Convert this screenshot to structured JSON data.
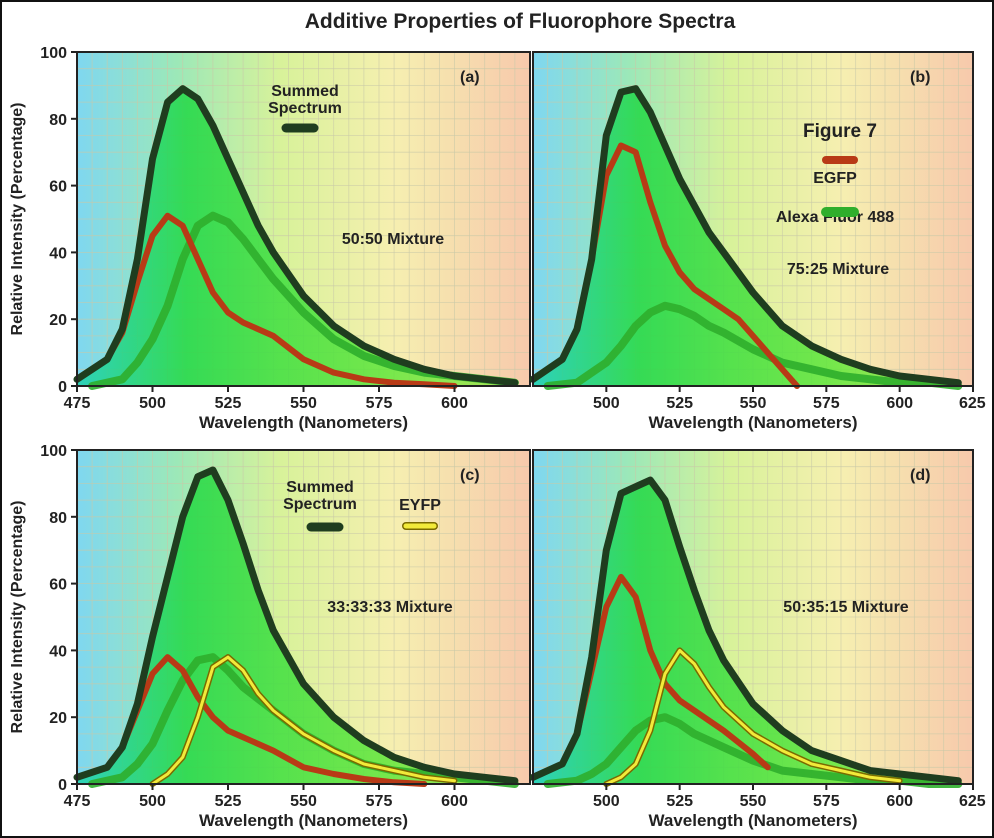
{
  "figure": {
    "title": "Additive Properties of Fluorophore Spectra",
    "figure_label": "Figure 7",
    "colors": {
      "summed": "#1f3d1f",
      "egfp": "#b83a16",
      "alexa": "#2fae2c",
      "eyfp_outer": "#7a6a00",
      "eyfp_inner": "#f2ea3a",
      "fill": "#3ee23e"
    }
  },
  "chart_data": [
    {
      "type": "line",
      "panel": "(a)",
      "mixture": "50:50 Mixture",
      "xlabel": "Wavelength (Nanometers)",
      "ylabel": "Relative Intensity (Percentage)",
      "xlim": [
        475,
        625
      ],
      "ylim": [
        0,
        100
      ],
      "xticks": [
        "475",
        "500",
        "525",
        "550",
        "575",
        "600"
      ],
      "yticks": [
        "0",
        "20",
        "40",
        "60",
        "80",
        "100"
      ],
      "legend": [
        {
          "label": "Summed Spectrum",
          "series": "summed"
        }
      ],
      "series": [
        {
          "key": "summed",
          "x": [
            475,
            485,
            490,
            495,
            500,
            505,
            510,
            515,
            520,
            525,
            530,
            535,
            540,
            550,
            560,
            570,
            580,
            590,
            600,
            610,
            620
          ],
          "y": [
            2,
            8,
            17,
            38,
            68,
            85,
            89,
            86,
            78,
            68,
            58,
            48,
            40,
            27,
            18,
            12,
            8,
            5,
            3,
            2,
            1
          ]
        },
        {
          "key": "egfp",
          "x": [
            475,
            485,
            490,
            495,
            500,
            505,
            510,
            515,
            520,
            525,
            530,
            540,
            550,
            560,
            570,
            580,
            590,
            600
          ],
          "y": [
            2,
            8,
            16,
            31,
            45,
            51,
            48,
            38,
            28,
            22,
            19,
            15,
            8,
            4,
            2,
            1,
            0.5,
            0
          ]
        },
        {
          "key": "alexa",
          "x": [
            480,
            490,
            495,
            500,
            505,
            510,
            515,
            520,
            525,
            530,
            535,
            540,
            550,
            560,
            570,
            580,
            590,
            600,
            610,
            620
          ],
          "y": [
            0,
            2,
            7,
            14,
            24,
            38,
            48,
            51,
            49,
            44,
            38,
            32,
            22,
            14,
            9,
            6,
            4,
            3,
            2,
            1
          ]
        }
      ]
    },
    {
      "type": "line",
      "panel": "(b)",
      "mixture": "75:25 Mixture",
      "xlabel": "Wavelength (Nanometers)",
      "ylabel": "",
      "xlim": [
        475,
        625
      ],
      "ylim": [
        0,
        100
      ],
      "xticks": [
        "500",
        "525",
        "550",
        "575",
        "600",
        "625"
      ],
      "yticks": [],
      "legend": [
        {
          "label": "EGFP",
          "series": "egfp"
        },
        {
          "label": "Alexa Fluor 488",
          "series": "alexa"
        }
      ],
      "series": [
        {
          "key": "summed",
          "x": [
            475,
            485,
            490,
            495,
            500,
            505,
            510,
            515,
            520,
            525,
            530,
            535,
            540,
            550,
            560,
            570,
            580,
            590,
            600,
            610,
            620
          ],
          "y": [
            2,
            8,
            17,
            38,
            75,
            88,
            89,
            82,
            72,
            62,
            54,
            46,
            40,
            28,
            18,
            12,
            8,
            5,
            3,
            2,
            1
          ]
        },
        {
          "key": "egfp",
          "x": [
            475,
            485,
            490,
            495,
            500,
            505,
            510,
            515,
            520,
            525,
            530,
            540,
            545,
            550,
            560,
            565
          ],
          "y": [
            2,
            8,
            17,
            38,
            63,
            72,
            70,
            55,
            42,
            34,
            29,
            23,
            20,
            15,
            5,
            0
          ]
        },
        {
          "key": "alexa",
          "x": [
            480,
            490,
            495,
            500,
            505,
            510,
            515,
            520,
            525,
            530,
            535,
            540,
            550,
            560,
            570,
            580,
            590,
            600,
            610,
            620
          ],
          "y": [
            0,
            1,
            4,
            7,
            12,
            18,
            22,
            24,
            23,
            21,
            18,
            16,
            11,
            7,
            5,
            3,
            2,
            1,
            1,
            0
          ]
        }
      ]
    },
    {
      "type": "line",
      "panel": "(c)",
      "mixture": "33:33:33 Mixture",
      "xlabel": "Wavelength (Nanometers)",
      "ylabel": "Relative Intensity (Percentage)",
      "xlim": [
        475,
        625
      ],
      "ylim": [
        0,
        100
      ],
      "xticks": [
        "475",
        "500",
        "525",
        "550",
        "575",
        "600"
      ],
      "yticks": [
        "0",
        "20",
        "40",
        "60",
        "80",
        "100"
      ],
      "legend": [
        {
          "label": "Summed Spectrum",
          "series": "summed"
        },
        {
          "label": "EYFP",
          "series": "eyfp"
        }
      ],
      "series": [
        {
          "key": "summed",
          "x": [
            475,
            485,
            490,
            495,
            500,
            505,
            510,
            515,
            520,
            525,
            530,
            535,
            540,
            550,
            560,
            570,
            580,
            590,
            600,
            610,
            620
          ],
          "y": [
            2,
            5,
            11,
            24,
            44,
            62,
            80,
            92,
            94,
            85,
            72,
            58,
            46,
            30,
            20,
            13,
            8,
            5,
            3,
            2,
            1
          ]
        },
        {
          "key": "egfp",
          "x": [
            475,
            485,
            490,
            495,
            500,
            505,
            510,
            515,
            520,
            525,
            530,
            540,
            550,
            560,
            570,
            580,
            590
          ],
          "y": [
            2,
            5,
            11,
            22,
            33,
            38,
            34,
            26,
            20,
            16,
            14,
            10,
            5,
            3,
            1.5,
            0.5,
            0
          ]
        },
        {
          "key": "alexa",
          "x": [
            480,
            490,
            495,
            500,
            505,
            510,
            515,
            520,
            525,
            530,
            540,
            550,
            560,
            570,
            580,
            590,
            600,
            610,
            620
          ],
          "y": [
            0,
            2,
            6,
            12,
            22,
            31,
            37,
            38,
            34,
            29,
            22,
            15,
            10,
            6,
            4,
            3,
            2,
            1,
            0
          ]
        },
        {
          "key": "eyfp",
          "x": [
            500,
            505,
            510,
            515,
            520,
            525,
            530,
            535,
            540,
            550,
            560,
            570,
            580,
            590,
            600
          ],
          "y": [
            0,
            3,
            8,
            20,
            35,
            38,
            34,
            27,
            22,
            15,
            10,
            6,
            4,
            2,
            1
          ]
        }
      ]
    },
    {
      "type": "line",
      "panel": "(d)",
      "mixture": "50:35:15 Mixture",
      "xlabel": "Wavelength (Nanometers)",
      "ylabel": "",
      "xlim": [
        475,
        625
      ],
      "ylim": [
        0,
        100
      ],
      "xticks": [
        "500",
        "525",
        "550",
        "575",
        "600",
        "625"
      ],
      "yticks": [],
      "legend": [],
      "series": [
        {
          "key": "summed",
          "x": [
            475,
            485,
            490,
            495,
            500,
            505,
            510,
            515,
            520,
            525,
            530,
            535,
            540,
            550,
            560,
            570,
            580,
            590,
            600,
            610,
            620
          ],
          "y": [
            2,
            6,
            15,
            38,
            70,
            87,
            89,
            91,
            85,
            71,
            58,
            46,
            37,
            24,
            16,
            10,
            7,
            4,
            3,
            2,
            1
          ]
        },
        {
          "key": "egfp",
          "x": [
            475,
            485,
            490,
            495,
            500,
            505,
            510,
            515,
            520,
            525,
            530,
            540,
            550,
            555
          ],
          "y": [
            2,
            6,
            15,
            34,
            53,
            62,
            56,
            40,
            30,
            25,
            22,
            16,
            9,
            5
          ]
        },
        {
          "key": "alexa",
          "x": [
            480,
            490,
            495,
            500,
            505,
            510,
            515,
            520,
            525,
            530,
            540,
            550,
            560,
            570,
            580,
            590,
            600,
            610,
            620
          ],
          "y": [
            0,
            1,
            3,
            6,
            11,
            16,
            19,
            20,
            18,
            15,
            11,
            7,
            4,
            3,
            2,
            1,
            1,
            0,
            0
          ]
        },
        {
          "key": "eyfp",
          "x": [
            500,
            505,
            510,
            515,
            520,
            525,
            530,
            535,
            540,
            550,
            560,
            570,
            580,
            590,
            600
          ],
          "y": [
            0,
            2,
            6,
            16,
            33,
            40,
            36,
            29,
            23,
            15,
            10,
            6,
            4,
            2,
            1
          ]
        }
      ]
    }
  ]
}
